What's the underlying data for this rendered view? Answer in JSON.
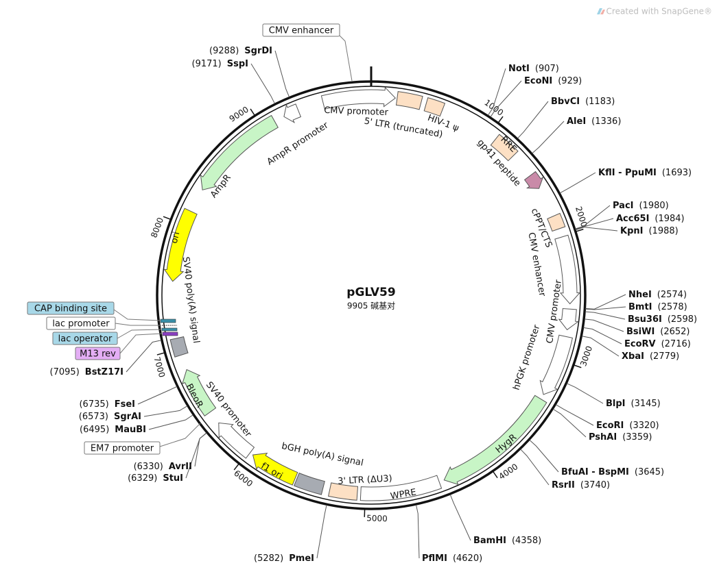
{
  "watermark": "Created with SnapGene®",
  "plasmid": {
    "name": "pGLV59",
    "length": {
      "value": 9905,
      "label": "9905 碱基对"
    }
  },
  "ticks": [
    1000,
    2000,
    3000,
    4000,
    5000,
    6000,
    7000,
    8000,
    9000
  ],
  "features": [
    {
      "label": "CMV promoter"
    },
    {
      "label": "5' LTR (truncated)"
    },
    {
      "label": "HIV-1 ψ"
    },
    {
      "label": "RRE"
    },
    {
      "label": "gp41 peptide"
    },
    {
      "label": "cPPT/CTS"
    },
    {
      "label": "CMV enhancer"
    },
    {
      "label": "CMV promoter"
    },
    {
      "label": "hPGK promoter"
    },
    {
      "label": "HygR"
    },
    {
      "label": "WPRE"
    },
    {
      "label": "3' LTR (ΔU3)"
    },
    {
      "label": "bGH poly(A) signal"
    },
    {
      "label": "f1 ori"
    },
    {
      "label": "SV40 promoter"
    },
    {
      "label": "BleoR"
    },
    {
      "label": "SV40 poly(A) signal"
    },
    {
      "label": "ori"
    },
    {
      "label": "AmpR"
    },
    {
      "label": "AmpR promoter"
    }
  ],
  "callouts": [
    "CMV enhancer",
    "CAP binding site",
    "lac promoter",
    "lac operator",
    "M13 rev",
    "EM7 promoter"
  ],
  "enzymes": [
    {
      "name": "NotI",
      "position": {
        "value": 907,
        "label": "(907)"
      }
    },
    {
      "name": "EcoNI",
      "position": {
        "value": 929,
        "label": "(929)"
      }
    },
    {
      "name": "BbvCI",
      "position": {
        "value": 1183,
        "label": "(1183)"
      }
    },
    {
      "name": "AleI",
      "position": {
        "value": 1336,
        "label": "(1336)"
      }
    },
    {
      "name": "KflI - PpuMI",
      "position": {
        "value": 1693,
        "label": "(1693)"
      }
    },
    {
      "name": "PacI",
      "position": {
        "value": 1980,
        "label": "(1980)"
      }
    },
    {
      "name": "Acc65I",
      "position": {
        "value": 1984,
        "label": "(1984)"
      }
    },
    {
      "name": "KpnI",
      "position": {
        "value": 1988,
        "label": "(1988)"
      }
    },
    {
      "name": "NheI",
      "position": {
        "value": 2574,
        "label": "(2574)"
      }
    },
    {
      "name": "BmtI",
      "position": {
        "value": 2578,
        "label": "(2578)"
      }
    },
    {
      "name": "Bsu36I",
      "position": {
        "value": 2598,
        "label": "(2598)"
      }
    },
    {
      "name": "BsiWI",
      "position": {
        "value": 2652,
        "label": "(2652)"
      }
    },
    {
      "name": "EcoRV",
      "position": {
        "value": 2716,
        "label": "(2716)"
      }
    },
    {
      "name": "XbaI",
      "position": {
        "value": 2779,
        "label": "(2779)"
      }
    },
    {
      "name": "BlpI",
      "position": {
        "value": 3145,
        "label": "(3145)"
      }
    },
    {
      "name": "EcoRI",
      "position": {
        "value": 3320,
        "label": "(3320)"
      }
    },
    {
      "name": "PshAI",
      "position": {
        "value": 3359,
        "label": "(3359)"
      }
    },
    {
      "name": "BfuAI - BspMI",
      "position": {
        "value": 3645,
        "label": "(3645)"
      }
    },
    {
      "name": "RsrII",
      "position": {
        "value": 3740,
        "label": "(3740)"
      }
    },
    {
      "name": "BamHI",
      "position": {
        "value": 4358,
        "label": "(4358)"
      }
    },
    {
      "name": "PflMI",
      "position": {
        "value": 4620,
        "label": "(4620)"
      }
    },
    {
      "name": "PmeI",
      "position": {
        "value": 5282,
        "label": "(5282)"
      }
    },
    {
      "name": "StuI",
      "position": {
        "value": 6329,
        "label": "(6329)"
      }
    },
    {
      "name": "AvrII",
      "position": {
        "value": 6330,
        "label": "(6330)"
      }
    },
    {
      "name": "MauBI",
      "position": {
        "value": 6495,
        "label": "(6495)"
      }
    },
    {
      "name": "SgrAI",
      "position": {
        "value": 6573,
        "label": "(6573)"
      }
    },
    {
      "name": "FseI",
      "position": {
        "value": 6735,
        "label": "(6735)"
      }
    },
    {
      "name": "BstZ17I",
      "position": {
        "value": 7095,
        "label": "(7095)"
      }
    },
    {
      "name": "SspI",
      "position": {
        "value": 9171,
        "label": "(9171)"
      }
    },
    {
      "name": "SgrDI",
      "position": {
        "value": 9288,
        "label": "(9288)"
      }
    }
  ]
}
